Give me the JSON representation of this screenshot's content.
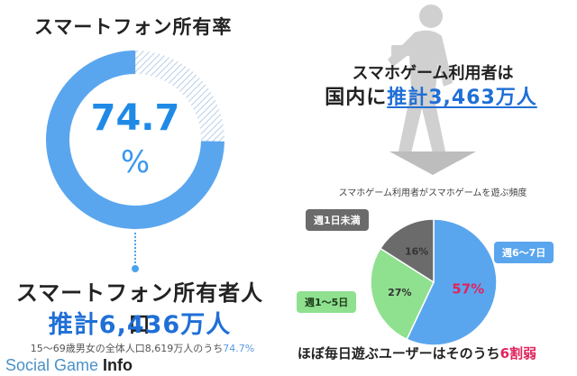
{
  "ownership": {
    "title": "スマートフォン所有率",
    "value": "74.7",
    "unit": "%",
    "owners_label": "スマートフォン所有者人口",
    "owners_value": "推計6,436万人",
    "population_note_prefix": "15～69歳男女の全体人口8,619万人のうち",
    "population_note_value": "74.7%"
  },
  "gamers": {
    "line1": "スマホゲーム利用者は",
    "line2_prefix": "国内に",
    "line2_value": "推計3,463万人"
  },
  "frequency": {
    "conclusion_prefix": "ほぼ毎日遊ぶユーザーはそのうち",
    "conclusion_value": "6割弱"
  },
  "watermark": {
    "part1": "Social Game ",
    "part2": "Info"
  },
  "colors": {
    "blue": "#5aa6ee",
    "green": "#8fe08f",
    "gray": "#6b6b6b",
    "accent": "#e0245e"
  },
  "chart_data": [
    {
      "type": "pie",
      "title": "",
      "values": [
        74.7,
        25.3
      ],
      "unit": "%",
      "labels": [
        "74.7%",
        ""
      ]
    },
    {
      "type": "pie",
      "title": "スマホゲーム利用者がスマホゲームを遊ぶ頻度",
      "categories": [
        "週6～7日",
        "週1～5日",
        "週1日未満"
      ],
      "values": [
        57,
        27,
        16
      ],
      "data_labels": [
        "57%",
        "27%",
        "16%"
      ]
    }
  ]
}
